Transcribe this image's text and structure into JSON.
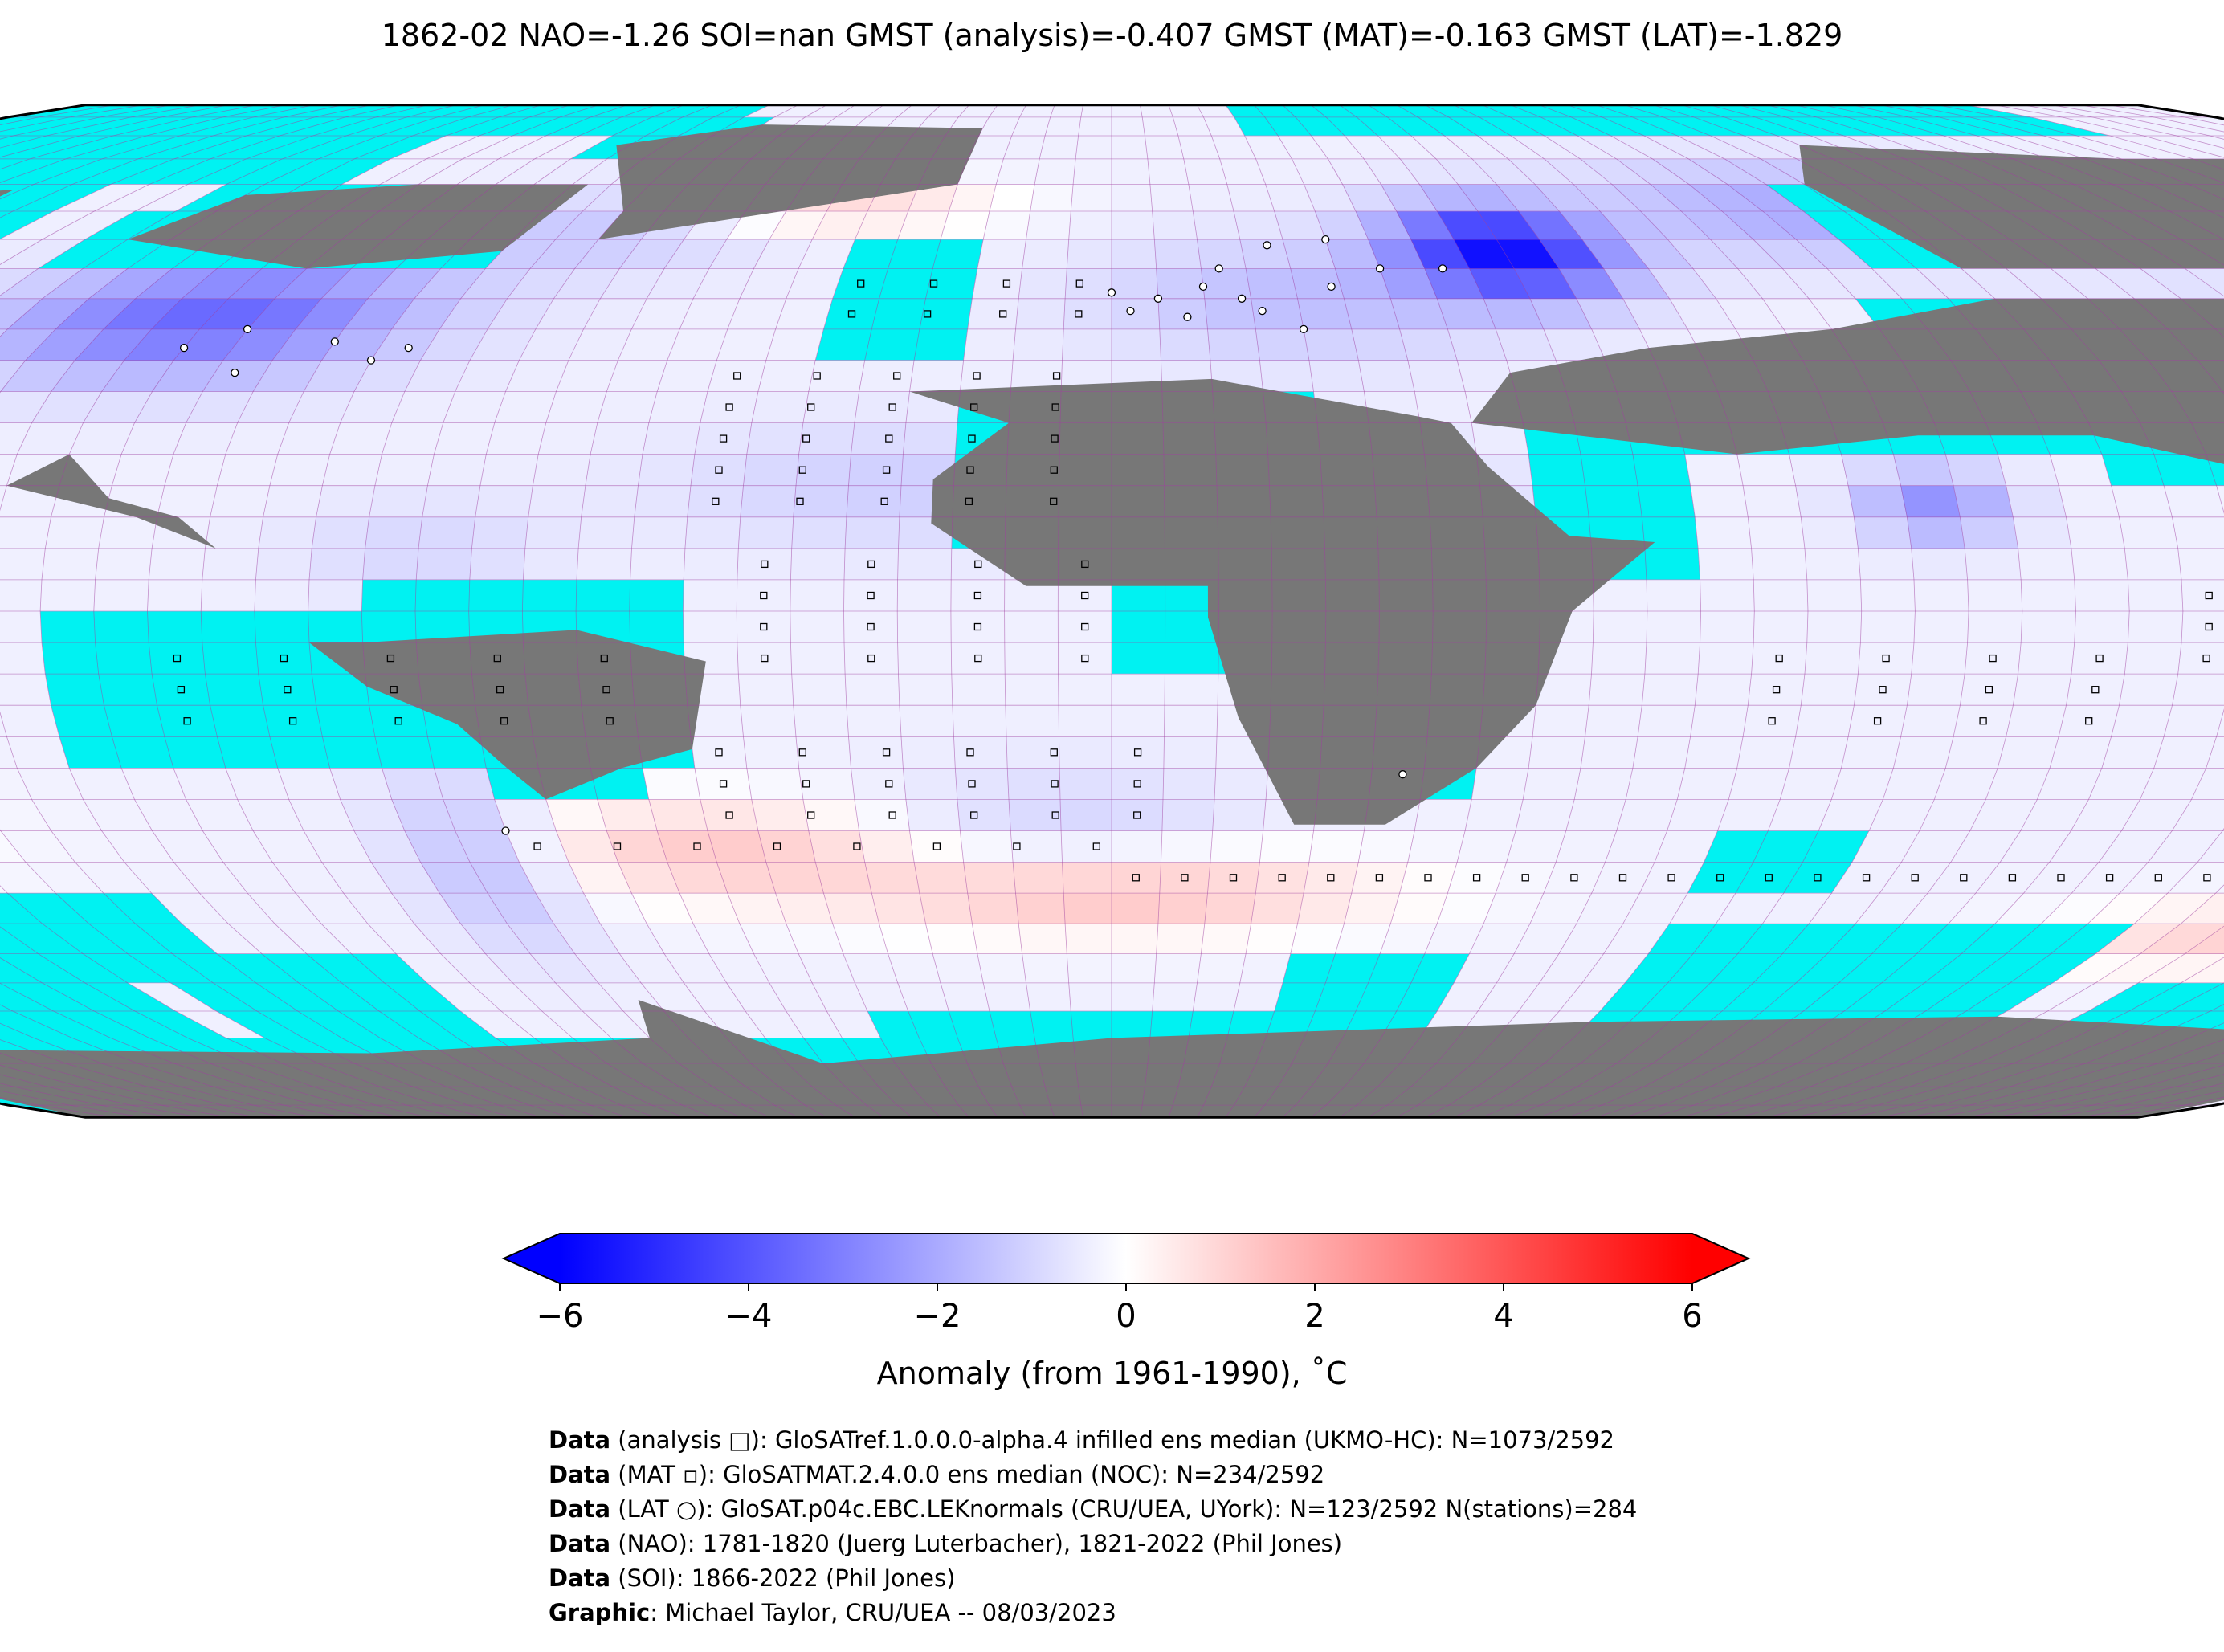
{
  "title": "1862-02 NAO=-1.26 SOI=nan GMST (analysis)=-0.407 GMST (MAT)=-0.163 GMST (LAT)=-1.829",
  "colorbar": {
    "label": "Anomaly (from 1961-1990), ˚C",
    "ticks": [
      "−6",
      "−4",
      "−2",
      "0",
      "2",
      "4",
      "6"
    ],
    "range": [
      -6,
      6
    ],
    "colormap": "bwr",
    "extend": "both"
  },
  "map": {
    "projection": "robinson",
    "ocean_color": "#00f2f2",
    "land_missing_color": "#777777",
    "grid_color": "#a040a0",
    "grid_resolution_deg": 5
  },
  "credits": [
    {
      "lead": "Data",
      "rest": " (analysis □): GloSATref.1.0.0.0-alpha.4 infilled ens median (UKMO-HC): N=1073/2592"
    },
    {
      "lead": "Data",
      "rest": " (MAT ▫): GloSATMAT.2.4.0.0 ens median (NOC): N=234/2592"
    },
    {
      "lead": "Data",
      "rest": " (LAT ○): GloSAT.p04c.EBC.LEKnormals (CRU/UEA, UYork): N=123/2592 N(stations)=284"
    },
    {
      "lead": "Data",
      "rest": " (NAO): 1781-1820 (Juerg Luterbacher), 1821-2022 (Phil Jones)"
    },
    {
      "lead": "Data",
      "rest": " (SOI): 1866-2022 (Phil Jones)"
    },
    {
      "lead": "Graphic",
      "rest": ": Michael Taylor, CRU/UEA -- 08/03/2023"
    }
  ]
}
